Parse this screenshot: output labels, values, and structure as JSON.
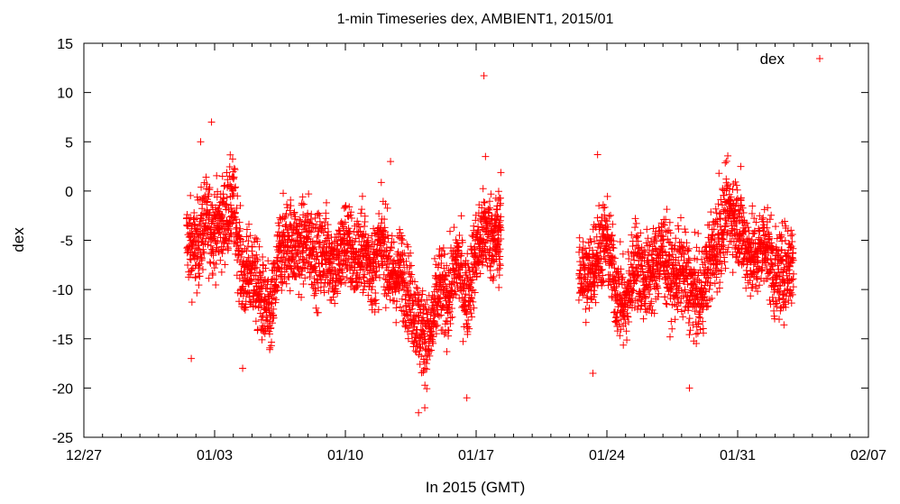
{
  "chart_data": {
    "type": "scatter",
    "title": "1-min Timeseries dex, AMBIENT1, 2015/01",
    "xlabel": "In 2015 (GMT)",
    "ylabel": "dex",
    "xlim": [
      "2014-12-27",
      "2015-02-07"
    ],
    "ylim": [
      -25,
      15
    ],
    "x_ticks": [
      "12/27",
      "01/03",
      "01/10",
      "01/17",
      "01/24",
      "01/31",
      "02/07"
    ],
    "y_ticks": [
      15,
      10,
      5,
      0,
      -5,
      -10,
      -15,
      -20,
      -25
    ],
    "legend": {
      "position": "top-right",
      "entries": [
        "dex"
      ]
    },
    "marker": "plus",
    "grid": false,
    "series": [
      {
        "name": "dex",
        "color": "#ff0000",
        "segments": [
          {
            "x": [
              "2015-01-01T12:00",
              "2015-01-02T00:00",
              "2015-01-02T12:00",
              "2015-01-03T00:00",
              "2015-01-03T12:00",
              "2015-01-04T00:00",
              "2015-01-04T12:00",
              "2015-01-05T00:00",
              "2015-01-05T12:00",
              "2015-01-06T00:00",
              "2015-01-06T12:00",
              "2015-01-07T00:00",
              "2015-01-07T12:00",
              "2015-01-08T00:00",
              "2015-01-08T12:00",
              "2015-01-09T00:00",
              "2015-01-09T12:00",
              "2015-01-10T00:00",
              "2015-01-10T12:00",
              "2015-01-11T00:00",
              "2015-01-11T12:00",
              "2015-01-12T00:00",
              "2015-01-12T12:00",
              "2015-01-13T00:00",
              "2015-01-13T12:00",
              "2015-01-14T00:00",
              "2015-01-14T12:00",
              "2015-01-15T00:00",
              "2015-01-15T12:00",
              "2015-01-16T00:00",
              "2015-01-16T12:00",
              "2015-01-17T00:00",
              "2015-01-17T12:00",
              "2015-01-18T00:00",
              "2015-01-18T08:00"
            ],
            "y": [
              -5,
              -6,
              -3,
              -4,
              -3,
              -1,
              -9,
              -8,
              -11,
              -13,
              -6,
              -5,
              -6,
              -5,
              -7,
              -6,
              -8,
              -5,
              -7,
              -6,
              -8,
              -5,
              -9,
              -8,
              -11,
              -14,
              -15,
              -10,
              -11,
              -7,
              -11,
              -6,
              -4,
              -5,
              -4
            ]
          },
          {
            "x": [
              "2015-01-22T12:00",
              "2015-01-23T00:00",
              "2015-01-23T12:00",
              "2015-01-24T00:00",
              "2015-01-24T12:00",
              "2015-01-25T00:00",
              "2015-01-25T12:00",
              "2015-01-26T00:00",
              "2015-01-26T12:00",
              "2015-01-27T00:00",
              "2015-01-27T12:00",
              "2015-01-28T00:00",
              "2015-01-28T12:00",
              "2015-01-29T00:00",
              "2015-01-29T12:00",
              "2015-01-30T00:00",
              "2015-01-30T12:00",
              "2015-01-31T00:00",
              "2015-01-31T12:00",
              "2015-02-01T00:00",
              "2015-02-01T12:00",
              "2015-02-02T00:00",
              "2015-02-02T12:00",
              "2015-02-03T00:00"
            ],
            "y": [
              -8,
              -9,
              -6,
              -5,
              -10,
              -12,
              -7,
              -9,
              -8,
              -6,
              -9,
              -8,
              -10,
              -11,
              -7,
              -5,
              -2,
              -3,
              -6,
              -7,
              -5,
              -9,
              -8,
              -7
            ]
          }
        ],
        "outliers": [
          {
            "x": "2015-01-02T06:00",
            "y": 5
          },
          {
            "x": "2015-01-02T20:00",
            "y": 7
          },
          {
            "x": "2015-01-01T18:00",
            "y": -17
          },
          {
            "x": "2015-01-04T12:00",
            "y": -18
          },
          {
            "x": "2015-01-13T22:00",
            "y": -22.5
          },
          {
            "x": "2015-01-14T06:00",
            "y": -22
          },
          {
            "x": "2015-01-16T12:00",
            "y": -21
          },
          {
            "x": "2015-01-17T10:00",
            "y": 11.7
          },
          {
            "x": "2015-01-17T12:00",
            "y": 3.5
          },
          {
            "x": "2015-01-12T10:00",
            "y": 3
          },
          {
            "x": "2015-01-23T06:00",
            "y": -18.5
          },
          {
            "x": "2015-01-23T12:00",
            "y": 3.7
          },
          {
            "x": "2015-01-28T10:00",
            "y": -20
          },
          {
            "x": "2015-01-31T04:00",
            "y": 2.5
          },
          {
            "x": "2015-01-30T00:00",
            "y": 1.8
          }
        ]
      }
    ]
  }
}
